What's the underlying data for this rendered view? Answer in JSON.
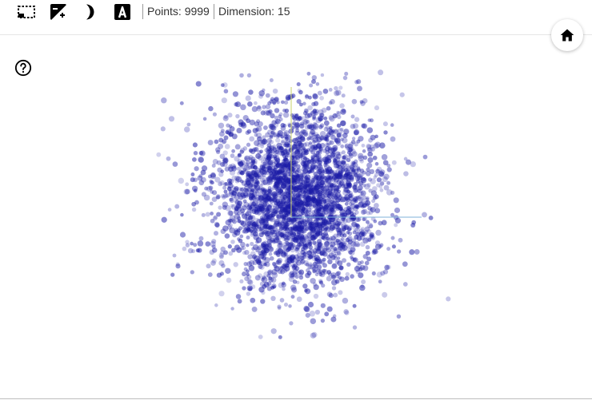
{
  "toolbar": {
    "tools": [
      {
        "name": "select-rectangle-icon"
      },
      {
        "name": "contrast-icon"
      },
      {
        "name": "dark-mode-icon"
      },
      {
        "name": "label-icon"
      }
    ],
    "points_text": "Points: 9999",
    "dimension_text": "Dimension: 15"
  },
  "controls": {
    "home_icon": "home-icon",
    "help_icon": "help-icon"
  },
  "colors": {
    "point": "#1a1aa6",
    "axis_y": "#c9d06a",
    "axis_x": "#7fb0d8",
    "icon": "#000000"
  },
  "chart_data": {
    "type": "scatter",
    "point_count": 9999,
    "dimension": 15,
    "distribution": "approximately gaussian cluster",
    "title": "",
    "xlabel": "",
    "ylabel": ""
  }
}
